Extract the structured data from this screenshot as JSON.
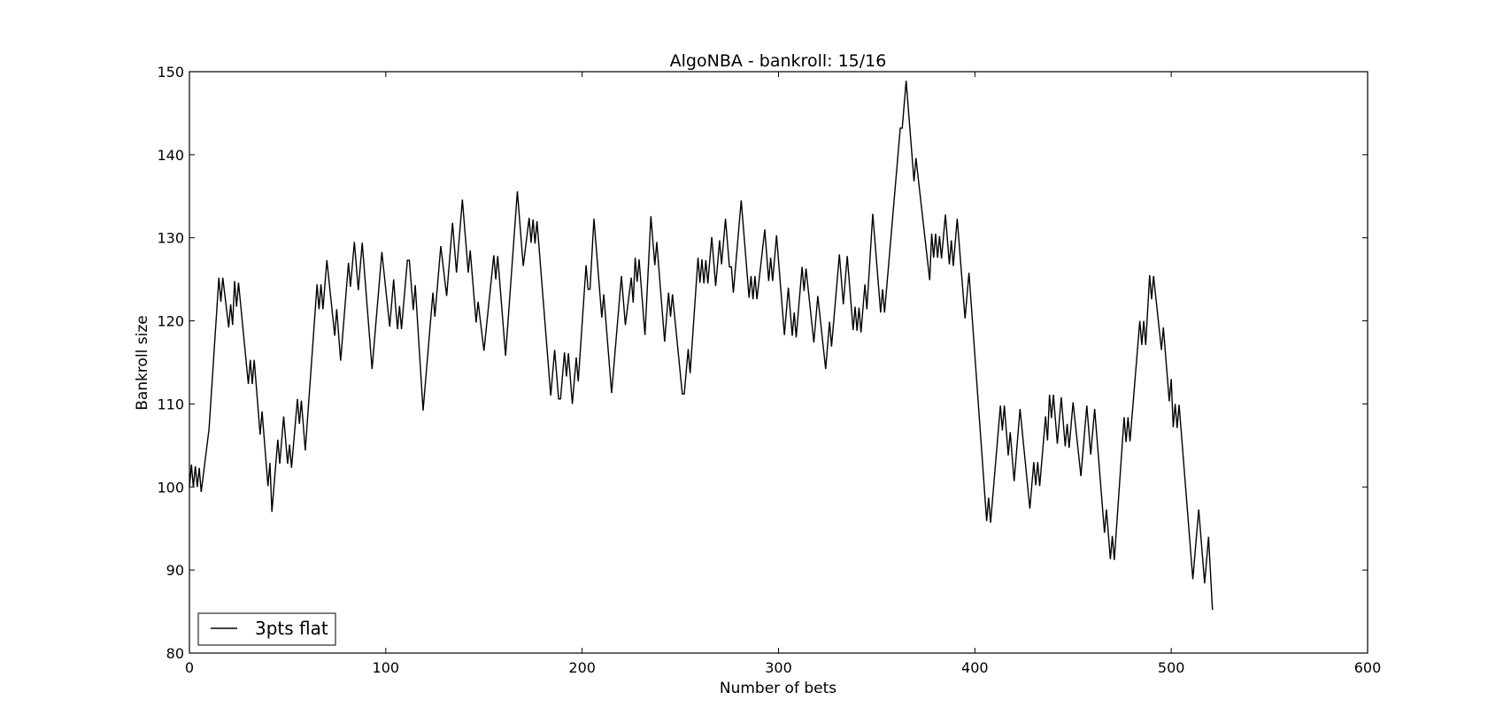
{
  "chart_data": {
    "type": "line",
    "title": "AlgoNBA - bankroll: 15/16",
    "xlabel": "Number of bets",
    "ylabel": "Bankroll size",
    "xlim": [
      0,
      600
    ],
    "ylim": [
      80,
      150
    ],
    "xticks": [
      0,
      100,
      200,
      300,
      400,
      500,
      600
    ],
    "yticks": [
      80,
      90,
      100,
      110,
      120,
      130,
      140,
      150
    ],
    "xtick_labels": [
      "0",
      "100",
      "200",
      "300",
      "400",
      "500",
      "600"
    ],
    "ytick_labels": [
      "80",
      "90",
      "100",
      "110",
      "120",
      "130",
      "140",
      "150"
    ],
    "grid": false,
    "legend": {
      "position": "lower-left",
      "entries": [
        "3pts flat"
      ]
    },
    "series": [
      {
        "name": "3pts flat",
        "color": "#000000",
        "points": [
          [
            0,
            100
          ],
          [
            1,
            102.7
          ],
          [
            2,
            100
          ],
          [
            3,
            102.5
          ],
          [
            4,
            100
          ],
          [
            5,
            102.3
          ],
          [
            6,
            99.4
          ],
          [
            10,
            107
          ],
          [
            15,
            125.2
          ],
          [
            16,
            122.3
          ],
          [
            17,
            125.2
          ],
          [
            20,
            119.2
          ],
          [
            21,
            122
          ],
          [
            22,
            119.5
          ],
          [
            23,
            124.8
          ],
          [
            24,
            121.7
          ],
          [
            25,
            124.6
          ],
          [
            30,
            112.4
          ],
          [
            31,
            115.3
          ],
          [
            32,
            112.4
          ],
          [
            33,
            115.3
          ],
          [
            36,
            106.3
          ],
          [
            37,
            109.1
          ],
          [
            40,
            100.1
          ],
          [
            41,
            102.9
          ],
          [
            42,
            97
          ],
          [
            45,
            105.7
          ],
          [
            46,
            102.8
          ],
          [
            48,
            108.5
          ],
          [
            50,
            102.8
          ],
          [
            51,
            105.1
          ],
          [
            52,
            102.3
          ],
          [
            55,
            110.6
          ],
          [
            56,
            107.6
          ],
          [
            57,
            110.4
          ],
          [
            59,
            104.4
          ],
          [
            65,
            124.4
          ],
          [
            66,
            121.4
          ],
          [
            67,
            124.4
          ],
          [
            68,
            121.4
          ],
          [
            70,
            127.3
          ],
          [
            74,
            118.2
          ],
          [
            75,
            121.4
          ],
          [
            77,
            115.2
          ],
          [
            81,
            127
          ],
          [
            82,
            124.1
          ],
          [
            84,
            129.5
          ],
          [
            86,
            123.7
          ],
          [
            88,
            129.4
          ],
          [
            93,
            114.2
          ],
          [
            98,
            128.3
          ],
          [
            102,
            119.3
          ],
          [
            104,
            125
          ],
          [
            105,
            121.7
          ],
          [
            106,
            119
          ],
          [
            107,
            121.8
          ],
          [
            108,
            119
          ],
          [
            111,
            127.3
          ],
          [
            112,
            127.3
          ],
          [
            114,
            121.3
          ],
          [
            115,
            124.3
          ],
          [
            119,
            109.2
          ],
          [
            124,
            123.4
          ],
          [
            125,
            120.5
          ],
          [
            128,
            129
          ],
          [
            131,
            123
          ],
          [
            134,
            131.8
          ],
          [
            136,
            125.8
          ],
          [
            139,
            134.6
          ],
          [
            142,
            125.8
          ],
          [
            143,
            128.5
          ],
          [
            146,
            119.8
          ],
          [
            147,
            122.3
          ],
          [
            150,
            116.4
          ],
          [
            155,
            127.9
          ],
          [
            156,
            125
          ],
          [
            157,
            127.8
          ],
          [
            161,
            115.8
          ],
          [
            167,
            135.6
          ],
          [
            170,
            126.6
          ],
          [
            173,
            132.4
          ],
          [
            174,
            129.4
          ],
          [
            175,
            132.2
          ],
          [
            176,
            129.3
          ],
          [
            177,
            132
          ],
          [
            184,
            111
          ],
          [
            186,
            116.5
          ],
          [
            188,
            110.6
          ],
          [
            189,
            110.6
          ],
          [
            191,
            116.2
          ],
          [
            192,
            113.3
          ],
          [
            193,
            116.1
          ],
          [
            195,
            110
          ],
          [
            197,
            115.6
          ],
          [
            198,
            112.7
          ],
          [
            202,
            126.7
          ],
          [
            203,
            123.8
          ],
          [
            204,
            123.8
          ],
          [
            206,
            132.3
          ],
          [
            210,
            120.4
          ],
          [
            211,
            123.2
          ],
          [
            215,
            111.3
          ],
          [
            220,
            125.4
          ],
          [
            222,
            119.5
          ],
          [
            225,
            125.2
          ],
          [
            226,
            122.2
          ],
          [
            227,
            127.6
          ],
          [
            228,
            124.7
          ],
          [
            229,
            127.4
          ],
          [
            232,
            118.3
          ],
          [
            235,
            132.6
          ],
          [
            237,
            126.7
          ],
          [
            238,
            129.5
          ],
          [
            242,
            117.5
          ],
          [
            244,
            123.4
          ],
          [
            245,
            120.5
          ],
          [
            246,
            123.2
          ],
          [
            251,
            111.2
          ],
          [
            252,
            111.2
          ],
          [
            254,
            116.6
          ],
          [
            255,
            113.7
          ],
          [
            259,
            127.6
          ],
          [
            260,
            124.6
          ],
          [
            261,
            127.4
          ],
          [
            262,
            124.5
          ],
          [
            263,
            127.3
          ],
          [
            264,
            124.5
          ],
          [
            266,
            130.1
          ],
          [
            268,
            124.2
          ],
          [
            270,
            129.7
          ],
          [
            271,
            126.8
          ],
          [
            273,
            132.3
          ],
          [
            275,
            126.5
          ],
          [
            276,
            126.5
          ],
          [
            277,
            123.4
          ],
          [
            281,
            134.5
          ],
          [
            285,
            122.8
          ],
          [
            286,
            125.4
          ],
          [
            287,
            122.6
          ],
          [
            288,
            125.4
          ],
          [
            289,
            122.6
          ],
          [
            293,
            131
          ],
          [
            295,
            124.8
          ],
          [
            296,
            127.6
          ],
          [
            297,
            124.8
          ],
          [
            299,
            130.3
          ],
          [
            303,
            118.3
          ],
          [
            305,
            124
          ],
          [
            307,
            118.2
          ],
          [
            308,
            121
          ],
          [
            309,
            118
          ],
          [
            312,
            126.5
          ],
          [
            313,
            123.6
          ],
          [
            314,
            126.3
          ],
          [
            318,
            117.4
          ],
          [
            320,
            123
          ],
          [
            324,
            114.2
          ],
          [
            326,
            119.9
          ],
          [
            327,
            116.9
          ],
          [
            331,
            128
          ],
          [
            333,
            122
          ],
          [
            335,
            127.8
          ],
          [
            338,
            118.9
          ],
          [
            339,
            121.7
          ],
          [
            340,
            118.8
          ],
          [
            341,
            121.6
          ],
          [
            342,
            118.6
          ],
          [
            344,
            124.4
          ],
          [
            345,
            121.4
          ],
          [
            348,
            132.9
          ],
          [
            352,
            121
          ],
          [
            353,
            123.8
          ],
          [
            354,
            121
          ],
          [
            362,
            143.2
          ],
          [
            363,
            143.2
          ],
          [
            365,
            148.9
          ],
          [
            369,
            136.8
          ],
          [
            370,
            139.6
          ],
          [
            377,
            124.9
          ],
          [
            378,
            130.5
          ],
          [
            379,
            127.6
          ],
          [
            380,
            130.5
          ],
          [
            381,
            127.6
          ],
          [
            382,
            130.2
          ],
          [
            383,
            127.5
          ],
          [
            385,
            132.8
          ],
          [
            387,
            126.8
          ],
          [
            388,
            129.7
          ],
          [
            389,
            126.6
          ],
          [
            391,
            132.3
          ],
          [
            395,
            120.3
          ],
          [
            397,
            125.8
          ],
          [
            406,
            95.9
          ],
          [
            407,
            98.7
          ],
          [
            408,
            95.7
          ],
          [
            413,
            109.8
          ],
          [
            414,
            106.8
          ],
          [
            415,
            109.8
          ],
          [
            417,
            103.8
          ],
          [
            418,
            106.6
          ],
          [
            420,
            100.7
          ],
          [
            423,
            109.4
          ],
          [
            428,
            97.4
          ],
          [
            430,
            103
          ],
          [
            431,
            100.2
          ],
          [
            432,
            103
          ],
          [
            433,
            100.1
          ],
          [
            436,
            108.5
          ],
          [
            437,
            105.6
          ],
          [
            438,
            111.1
          ],
          [
            439,
            108.3
          ],
          [
            440,
            111.1
          ],
          [
            442,
            105.2
          ],
          [
            444,
            110.8
          ],
          [
            446,
            104.9
          ],
          [
            447,
            107.6
          ],
          [
            448,
            104.7
          ],
          [
            450,
            110.2
          ],
          [
            454,
            101.3
          ],
          [
            457,
            109.8
          ],
          [
            459,
            103.9
          ],
          [
            461,
            109.4
          ],
          [
            466,
            94.5
          ],
          [
            467,
            97.3
          ],
          [
            469,
            91.3
          ],
          [
            470,
            94.1
          ],
          [
            471,
            91.2
          ],
          [
            476,
            108.4
          ],
          [
            477,
            105.4
          ],
          [
            478,
            108.4
          ],
          [
            479,
            105.5
          ],
          [
            484,
            120
          ],
          [
            485,
            117.1
          ],
          [
            486,
            120
          ],
          [
            487,
            117.1
          ],
          [
            489,
            125.5
          ],
          [
            490,
            122.6
          ],
          [
            491,
            125.4
          ],
          [
            495,
            116.5
          ],
          [
            496,
            119.2
          ],
          [
            499,
            110.3
          ],
          [
            500,
            113
          ],
          [
            501,
            107.2
          ],
          [
            502,
            110
          ],
          [
            503,
            107.1
          ],
          [
            504,
            109.9
          ],
          [
            511,
            88.9
          ],
          [
            514,
            97.3
          ],
          [
            517,
            88.4
          ],
          [
            519,
            94
          ],
          [
            521,
            85.2
          ]
        ]
      }
    ]
  }
}
